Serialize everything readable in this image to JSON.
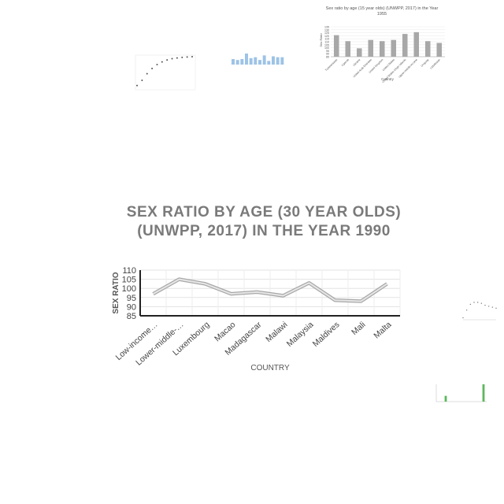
{
  "chart_data": [
    {
      "type": "line",
      "title": "SEX RATIO BY AGE (30 YEAR OLDS) (UNWPP, 2017) IN THE YEAR 1990",
      "xlabel": "COUNTRY",
      "ylabel": "SEX RATIO",
      "categories": [
        "Low-income…",
        "Lower-middle-…",
        "Luxembourg",
        "Macao",
        "Madagascar",
        "Malawi",
        "Malaysia",
        "Maldives",
        "Mali",
        "Malta"
      ],
      "values": [
        97,
        105,
        102.5,
        97,
        98,
        96,
        103,
        93.5,
        93,
        102.5
      ],
      "ylim": [
        85,
        110
      ],
      "yticks": [
        85,
        90,
        95,
        100,
        105,
        110
      ],
      "grid": true,
      "color": "#c8c8c8"
    },
    {
      "type": "bar",
      "title": "Sex ratio by age (15 year olds) (UNWPP, 2017) in the Year 1955",
      "xlabel": "Country",
      "ylabel": "Sex Ratio",
      "ylim": [
        85,
        135
      ],
      "yticks": [
        85,
        90,
        95,
        100,
        105,
        110,
        115,
        120,
        125,
        130,
        135
      ],
      "categories": [
        "Turkmenistan",
        "Uganda",
        "Ukraine",
        "United Arab Emirates",
        "United Kingdom",
        "United States",
        "United States Virgin Islands",
        "Upper-middle-income",
        "Uruguay",
        "Uzbekistan"
      ],
      "values": [
        121,
        111,
        99,
        113,
        111,
        113,
        123,
        126,
        111,
        108
      ],
      "color": "#a8a8a8"
    },
    {
      "type": "scatter",
      "values": [
        2,
        6,
        11,
        15,
        18,
        20,
        21.5,
        22.5,
        23,
        23.5,
        23.8,
        24
      ],
      "color": "#555555"
    },
    {
      "type": "bar",
      "values": [
        6,
        5,
        6,
        12,
        7,
        8,
        5,
        10,
        4,
        9,
        8,
        8
      ],
      "color": "#9dc3e6"
    },
    {
      "type": "scatter",
      "values": [
        1,
        5,
        8,
        9,
        9,
        8.5,
        7.5,
        7,
        6.5,
        6
      ],
      "color": "#7a7a7a"
    },
    {
      "type": "bar",
      "values": [
        0,
        3,
        0,
        0,
        0,
        0,
        0,
        9
      ],
      "color": "#5cb85c"
    }
  ]
}
